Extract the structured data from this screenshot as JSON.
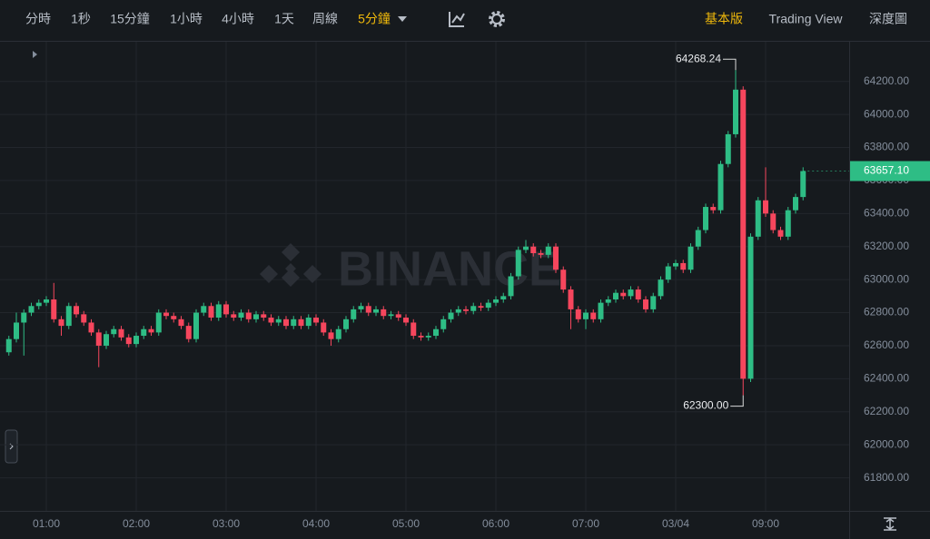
{
  "toolbar": {
    "intervals": [
      "分時",
      "1秒",
      "15分鐘",
      "1小時",
      "4小時",
      "1天",
      "周線",
      "5分鐘"
    ],
    "selected_interval": "5分鐘",
    "views": [
      "基本版",
      "Trading View",
      "深度圖"
    ],
    "selected_view": "基本版"
  },
  "chart_data": {
    "type": "candlestick",
    "watermark": "BINANCE",
    "categories": [
      null,
      null,
      null,
      null,
      null,
      "01:00",
      null,
      null,
      null,
      null,
      null,
      null,
      null,
      null,
      null,
      null,
      null,
      "02:00",
      null,
      null,
      null,
      null,
      null,
      null,
      null,
      null,
      null,
      null,
      null,
      "03:00",
      null,
      null,
      null,
      null,
      null,
      null,
      null,
      null,
      null,
      null,
      null,
      "04:00",
      null,
      null,
      null,
      null,
      null,
      null,
      null,
      null,
      null,
      null,
      null,
      "05:00",
      null,
      null,
      null,
      null,
      null,
      null,
      null,
      null,
      null,
      null,
      null,
      "06:00",
      null,
      null,
      null,
      null,
      null,
      null,
      null,
      null,
      null,
      null,
      null,
      "07:00",
      null,
      null,
      null,
      null,
      null,
      null,
      null,
      null,
      null,
      null,
      null,
      "03/04",
      null,
      null,
      null,
      null,
      null,
      null,
      null,
      null,
      null,
      null,
      null,
      "09:00",
      null,
      null,
      null,
      null,
      null
    ],
    "open": [
      62560,
      62640,
      62740,
      62800,
      62840,
      62860,
      62880,
      62760,
      62720,
      62840,
      62790,
      62740,
      62680,
      62600,
      62670,
      62700,
      62650,
      62610,
      62660,
      62700,
      62680,
      62800,
      62780,
      62760,
      62720,
      62640,
      62800,
      62840,
      62770,
      62850,
      62790,
      62770,
      62800,
      62760,
      62790,
      62770,
      62740,
      62760,
      62720,
      62760,
      62720,
      62770,
      62740,
      62680,
      62640,
      62700,
      62760,
      62820,
      62840,
      62800,
      62820,
      62780,
      62790,
      62770,
      62740,
      62660,
      62650,
      62660,
      62700,
      62760,
      62800,
      62820,
      62810,
      62840,
      62830,
      62860,
      62880,
      62900,
      63020,
      63180,
      63200,
      63160,
      63150,
      63200,
      63060,
      62940,
      62820,
      62760,
      62800,
      62760,
      62860,
      62880,
      62920,
      62900,
      62940,
      62880,
      62820,
      62900,
      63000,
      63080,
      63100,
      63060,
      63200,
      63300,
      63440,
      63420,
      63700,
      63880,
      64150,
      62400,
      63260,
      63480,
      63400,
      63300,
      63260,
      63420,
      63500
    ],
    "high": [
      62660,
      62800,
      62820,
      62860,
      62880,
      62900,
      62980,
      62780,
      62860,
      62860,
      62810,
      62760,
      62700,
      62690,
      62720,
      62720,
      62670,
      62680,
      62720,
      62720,
      62820,
      62820,
      62800,
      62780,
      62740,
      62820,
      62860,
      62860,
      62870,
      62870,
      62810,
      62820,
      62820,
      62810,
      62810,
      62790,
      62780,
      62780,
      62780,
      62780,
      62790,
      62790,
      62760,
      62700,
      62720,
      62780,
      62840,
      62860,
      62860,
      62840,
      62840,
      62810,
      62810,
      62790,
      62760,
      62680,
      62680,
      62720,
      62780,
      62820,
      62840,
      62840,
      62860,
      62860,
      62880,
      62900,
      62920,
      63040,
      63200,
      63240,
      63220,
      63180,
      63220,
      63220,
      63080,
      62960,
      62840,
      62820,
      62820,
      62880,
      62900,
      62940,
      62940,
      62960,
      62960,
      62900,
      62920,
      63020,
      63100,
      63120,
      63120,
      63220,
      63320,
      63460,
      63460,
      63720,
      63900,
      64268.24,
      64170,
      63280,
      63500,
      63680,
      63420,
      63320,
      63440,
      63520,
      63680
    ],
    "low": [
      62540,
      62620,
      62540,
      62780,
      62820,
      62840,
      62740,
      62660,
      62700,
      62770,
      62720,
      62660,
      62470,
      62580,
      62650,
      62630,
      62590,
      62590,
      62640,
      62660,
      62660,
      62760,
      62740,
      62700,
      62620,
      62620,
      62780,
      62750,
      62750,
      62770,
      62750,
      62750,
      62740,
      62740,
      62750,
      62720,
      62720,
      62700,
      62700,
      62700,
      62700,
      62720,
      62660,
      62600,
      62620,
      62680,
      62740,
      62800,
      62780,
      62780,
      62760,
      62760,
      62750,
      62720,
      62640,
      62630,
      62630,
      62640,
      62680,
      62740,
      62780,
      62790,
      62790,
      62810,
      62810,
      62840,
      62860,
      62880,
      63000,
      63160,
      63140,
      63130,
      63130,
      63040,
      62920,
      62700,
      62740,
      62700,
      62740,
      62740,
      62840,
      62860,
      62880,
      62880,
      62860,
      62800,
      62800,
      62880,
      62980,
      63060,
      63040,
      63040,
      63180,
      63280,
      63400,
      63400,
      63680,
      63860,
      62300,
      62380,
      63240,
      63380,
      63280,
      63240,
      63240,
      63400,
      63480
    ],
    "close": [
      62640,
      62740,
      62800,
      62840,
      62860,
      62880,
      62760,
      62720,
      62840,
      62790,
      62740,
      62680,
      62600,
      62670,
      62700,
      62650,
      62610,
      62660,
      62700,
      62680,
      62800,
      62780,
      62760,
      62720,
      62640,
      62800,
      62840,
      62770,
      62850,
      62790,
      62770,
      62800,
      62760,
      62790,
      62770,
      62740,
      62760,
      62720,
      62760,
      62720,
      62770,
      62740,
      62680,
      62640,
      62700,
      62760,
      62820,
      62840,
      62800,
      62820,
      62780,
      62790,
      62770,
      62740,
      62660,
      62650,
      62660,
      62700,
      62760,
      62800,
      62820,
      62810,
      62840,
      62830,
      62860,
      62880,
      62900,
      63020,
      63180,
      63200,
      63160,
      63150,
      63200,
      63060,
      62940,
      62820,
      62760,
      62800,
      62760,
      62860,
      62880,
      62920,
      62900,
      62940,
      62880,
      62820,
      62900,
      63000,
      63080,
      63100,
      63060,
      63200,
      63300,
      63440,
      63420,
      63700,
      63880,
      64150,
      62400,
      63260,
      63480,
      63400,
      63300,
      63260,
      63420,
      63500,
      63657.1
    ],
    "up_color": "#2ebd85",
    "down_color": "#f6465d",
    "ylim": [
      61600,
      64440
    ],
    "yticks": [
      {
        "value": 61800,
        "label": "61800.00"
      },
      {
        "value": 62000,
        "label": "62000.00"
      },
      {
        "value": 62200,
        "label": "62200.00"
      },
      {
        "value": 62400,
        "label": "62400.00"
      },
      {
        "value": 62600,
        "label": "62600.00"
      },
      {
        "value": 62800,
        "label": "62800.00"
      },
      {
        "value": 63000,
        "label": "63000.00"
      },
      {
        "value": 63200,
        "label": "63200.00"
      },
      {
        "value": 63400,
        "label": "63400.00"
      },
      {
        "value": 63600,
        "label": "63600.00"
      },
      {
        "value": 63800,
        "label": "63800.00"
      },
      {
        "value": 64000,
        "label": "64000.00"
      },
      {
        "value": 64200,
        "label": "64200.00"
      }
    ],
    "grid": true,
    "annotations": [
      {
        "value": 64268.24,
        "label": "64268.24",
        "index": 97,
        "side": "top"
      },
      {
        "value": 62300,
        "label": "62300.00",
        "index": 98,
        "side": "bottom"
      }
    ],
    "last_price": {
      "value": 63657.1,
      "label": "63657.10"
    }
  }
}
